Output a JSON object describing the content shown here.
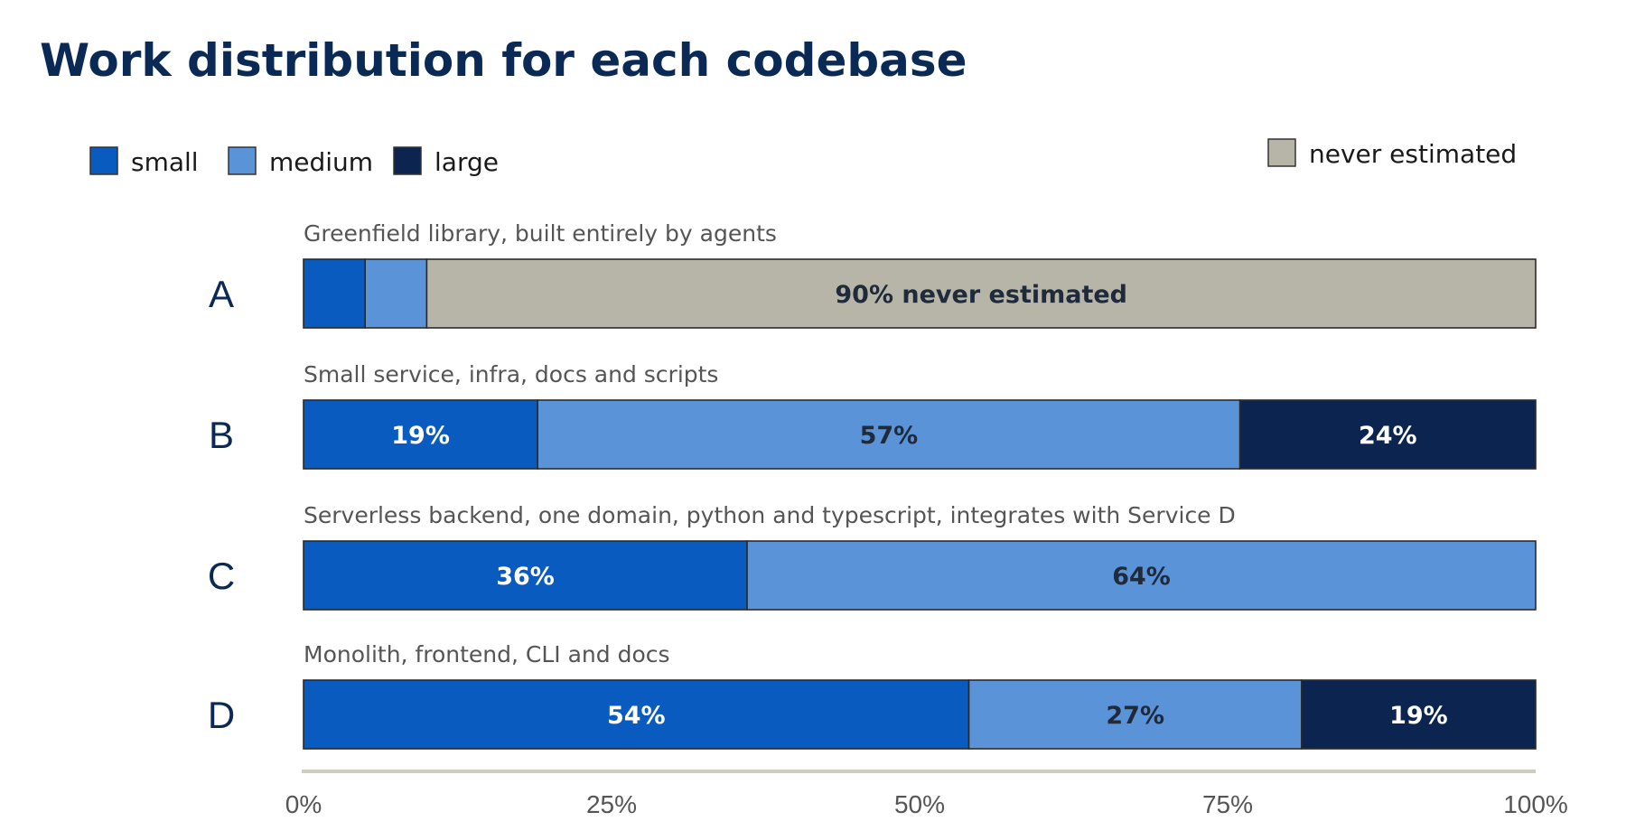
{
  "chart_data": {
    "type": "bar",
    "orientation": "horizontal",
    "stacked": true,
    "title": "Work distribution for each codebase",
    "legend": [
      {
        "key": "small",
        "label": "small",
        "color": "#0a5bbf"
      },
      {
        "key": "medium",
        "label": "medium",
        "color": "#5b93d9"
      },
      {
        "key": "large",
        "label": "large",
        "color": "#0b2550"
      },
      {
        "key": "never",
        "label": "never estimated",
        "color": "#b6b5a8"
      }
    ],
    "legend_placement": "top-left (sizes), top-right (never estimated)",
    "xlim": [
      0,
      100
    ],
    "x_ticks": [
      "0%",
      "25%",
      "50%",
      "75%",
      "100%"
    ],
    "x_tick_values": [
      0,
      25,
      50,
      75,
      100
    ],
    "grid": false,
    "rows": [
      {
        "label": "A",
        "subtitle": "Greenfield library, built entirely by agents",
        "segments": [
          {
            "key": "small",
            "value": 5,
            "label": ""
          },
          {
            "key": "medium",
            "value": 5,
            "label": ""
          },
          {
            "key": "never",
            "value": 90,
            "label": "90% never estimated"
          }
        ]
      },
      {
        "label": "B",
        "subtitle": "Small service, infra, docs and scripts",
        "segments": [
          {
            "key": "small",
            "value": 19,
            "label": "19%"
          },
          {
            "key": "medium",
            "value": 57,
            "label": "57%"
          },
          {
            "key": "large",
            "value": 24,
            "label": "24%"
          }
        ]
      },
      {
        "label": "C",
        "subtitle": "Serverless backend, one domain, python and typescript, integrates with Service D",
        "segments": [
          {
            "key": "small",
            "value": 36,
            "label": "36%"
          },
          {
            "key": "medium",
            "value": 64,
            "label": "64%"
          }
        ]
      },
      {
        "label": "D",
        "subtitle": "Monolith, frontend, CLI and docs",
        "segments": [
          {
            "key": "small",
            "value": 54,
            "label": "54%"
          },
          {
            "key": "medium",
            "value": 27,
            "label": "27%"
          },
          {
            "key": "large",
            "value": 19,
            "label": "19%"
          }
        ]
      }
    ]
  }
}
